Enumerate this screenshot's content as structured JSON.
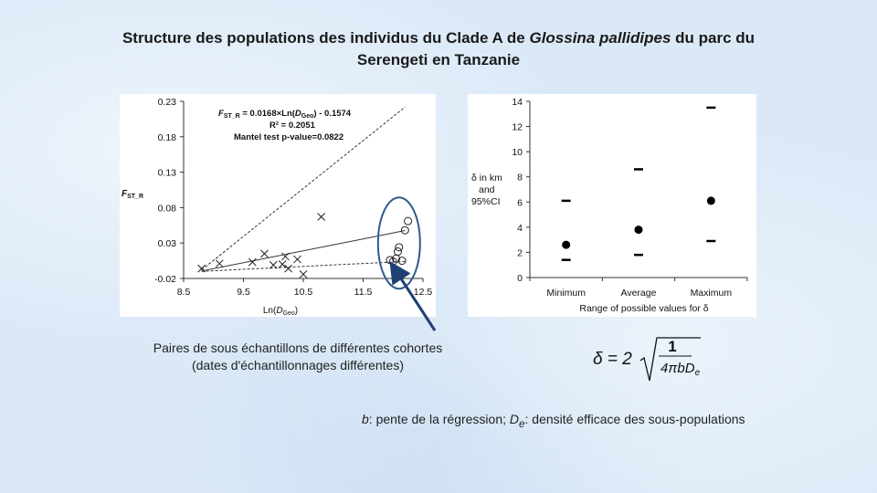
{
  "title": {
    "part1": "Structure des populations des individus du Clade A  de",
    "species": "Glossina pallidipes",
    "part2": "du parc du Serengeti  en Tanzanie"
  },
  "chart_data": [
    {
      "type": "scatter",
      "xlabel": "Ln(DGeo)",
      "ylabel": "FST_R",
      "xlim": [
        8.5,
        12.5
      ],
      "ylim": [
        -0.02,
        0.23
      ],
      "xticks": [
        "8.5",
        "9.5",
        "10.5",
        "11.5",
        "12.5"
      ],
      "yticks": [
        "0.23",
        "0.18",
        "0.13",
        "0.08",
        "0.03",
        "-0.02"
      ],
      "annotations": {
        "equation": "FST_R = 0.0168×Ln(DGeo) - 0.1574",
        "r2": "R² = 0.2051",
        "mantel": "Mantel test p-value=0.0822"
      },
      "series": [
        {
          "marker": "x",
          "points": [
            [
              8.8,
              -0.006
            ],
            [
              9.1,
              0.001
            ],
            [
              9.65,
              0.003
            ],
            [
              9.85,
              0.015
            ],
            [
              10.0,
              -0.001
            ],
            [
              10.15,
              0.0
            ],
            [
              10.2,
              0.011
            ],
            [
              10.25,
              -0.006
            ],
            [
              10.4,
              0.007
            ],
            [
              10.5,
              -0.014
            ],
            [
              10.8,
              0.067
            ]
          ]
        },
        {
          "marker": "o",
          "points": [
            [
              11.95,
              0.006
            ],
            [
              12.0,
              0.004
            ],
            [
              12.05,
              0.008
            ],
            [
              12.08,
              0.018
            ],
            [
              12.1,
              0.024
            ],
            [
              12.15,
              0.005
            ],
            [
              12.2,
              0.048
            ],
            [
              12.25,
              0.061
            ]
          ]
        }
      ],
      "lines": [
        {
          "style": "solid",
          "x": [
            8.8,
            12.2
          ],
          "y": [
            -0.0095,
            0.0476
          ]
        },
        {
          "style": "dashed",
          "x": [
            8.8,
            12.2
          ],
          "y": [
            -0.008,
            0.222
          ]
        },
        {
          "style": "dashed",
          "x": [
            8.8,
            12.2
          ],
          "y": [
            -0.01,
            0.004
          ]
        }
      ],
      "highlight_ellipse": true
    },
    {
      "type": "scatter",
      "ylabel": "δ in km and 95%CI",
      "xlabel": "Range of possible values for δ",
      "categories": [
        "Minimum",
        "Average",
        "Maximum"
      ],
      "ylim": [
        0,
        14
      ],
      "yticks": [
        "0",
        "2",
        "4",
        "6",
        "8",
        "10",
        "12",
        "14"
      ],
      "estimate": [
        2.6,
        3.8,
        6.1
      ],
      "ci_lower": [
        1.4,
        1.8,
        2.9
      ],
      "ci_upper": [
        6.1,
        8.6,
        13.5
      ]
    }
  ],
  "caption_left": [
    "Paires de sous échantillons de différentes cohortes",
    "(dates d'échantillonnages différentes)"
  ],
  "formula": {
    "lhs": "δ = 2",
    "numerator": "1",
    "denominator": "4πbDe"
  },
  "caption_bottom": {
    "b": "b",
    "b_text": ": pente de la régression;",
    "de": "D",
    "de_sub": "e",
    "de_text": ": densité efficace des sous-populations"
  }
}
